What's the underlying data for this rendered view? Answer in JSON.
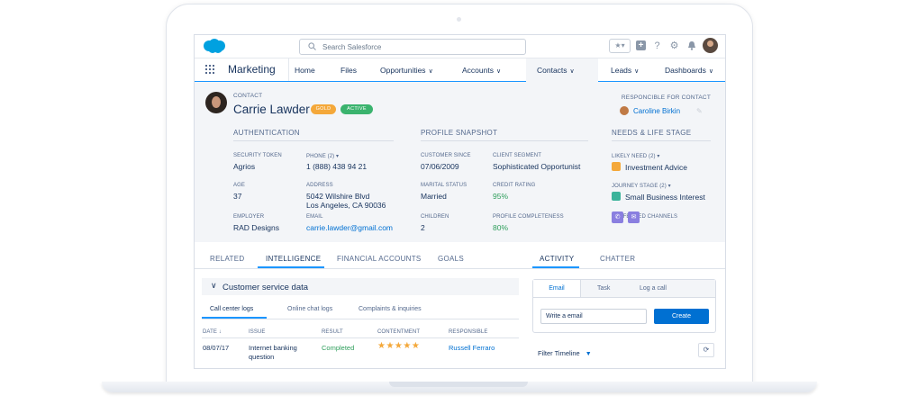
{
  "header": {
    "search_placeholder": "Search Salesforce",
    "fav_icon": "★▾",
    "plus_icon": "+",
    "help_icon": "?",
    "settings_icon": "⚙",
    "bell_icon": "🔔"
  },
  "nav": {
    "app_name": "Marketing",
    "items": [
      {
        "label": "Home",
        "chev": ""
      },
      {
        "label": "Files",
        "chev": ""
      },
      {
        "label": "Opportunities",
        "chev": "∨"
      },
      {
        "label": "Accounts",
        "chev": "∨"
      },
      {
        "label": "Contacts",
        "chev": "∨"
      },
      {
        "label": "Leads",
        "chev": "∨"
      },
      {
        "label": "Dashboards",
        "chev": "∨"
      }
    ]
  },
  "contact": {
    "object_label": "CONTACT",
    "name": "Carrie Lawder",
    "badges": {
      "gold": "GOLD",
      "active": "ACTIVE"
    },
    "responsible_label": "RESPONCIBLE FOR CONTACT",
    "responsible_name": "Caroline Birkin"
  },
  "sections": {
    "authentication": "AUTHENTICATION",
    "profile_snapshot": "PROFILE SNAPSHOT",
    "needs_life_stage": "NEEDS & LIFE STAGE"
  },
  "fields": {
    "security_token": {
      "label": "SECURITY TOKEN",
      "value": "Agrios"
    },
    "phone": {
      "label": "PHONE (2) ▾",
      "value": "1 (888) 438 94 21"
    },
    "customer_since": {
      "label": "CUSTOMER SINCE",
      "value": "07/06/2009"
    },
    "client_segment": {
      "label": "CLIENT SEGMENT",
      "value": "Sophisticated Opportunist"
    },
    "likely_need": {
      "label": "LIKELY NEED (2) ▾",
      "value": "Investment Advice"
    },
    "age": {
      "label": "AGE",
      "value": "37"
    },
    "address": {
      "label": "ADDRESS",
      "line1": "5042 Wilshire Blvd",
      "line2": "Los Angeles, CA 90036"
    },
    "marital_status": {
      "label": "MARITAL STATUS",
      "value": "Married"
    },
    "credit_rating": {
      "label": "CREDIT RATING",
      "value": "95%"
    },
    "journey_stage": {
      "label": "JOURNEY STAGE (2) ▾",
      "value": "Small Business Interest"
    },
    "employer": {
      "label": "EMPLOYER",
      "value": "RAD Designs"
    },
    "email": {
      "label": "EMAIL",
      "value": "carrie.lawder@gmail.com"
    },
    "children": {
      "label": "CHILDREN",
      "value": "2"
    },
    "profile_completeness": {
      "label": "PROFILE COMPLETENESS",
      "value": "80%"
    },
    "preferred_channels": {
      "label": "PREFERRED CHANNELS"
    }
  },
  "left_tabs": [
    "RELATED",
    "INTELLIGENCE",
    "FINANCIAL ACCOUNTS",
    "GOALS"
  ],
  "customer_service": {
    "title": "Customer service data",
    "subtabs": [
      "Call center logs",
      "Online chat logs",
      "Complaints & inquiries"
    ],
    "columns": [
      "DATE ↓",
      "ISSUE",
      "RESULT",
      "CONTENTMENT",
      "RESPONSIBLE"
    ],
    "rows": [
      {
        "date": "08/07/17",
        "issue_line1": "Internet banking",
        "issue_line2": "question",
        "result": "Completed",
        "contentment": 5,
        "responsible": "Russell Ferraro"
      }
    ]
  },
  "right_tabs": [
    "ACTIVITY",
    "CHATTER"
  ],
  "composer": {
    "tabs": [
      "Email",
      "Task",
      "Log a call"
    ],
    "input_value": "Write a email",
    "create_label": "Create"
  },
  "filter_label": "Filter Timeline",
  "colors": {
    "brand": "#1b96ff",
    "link": "#0070d2",
    "gold": "#f4a83a",
    "active": "#3ab36e"
  }
}
